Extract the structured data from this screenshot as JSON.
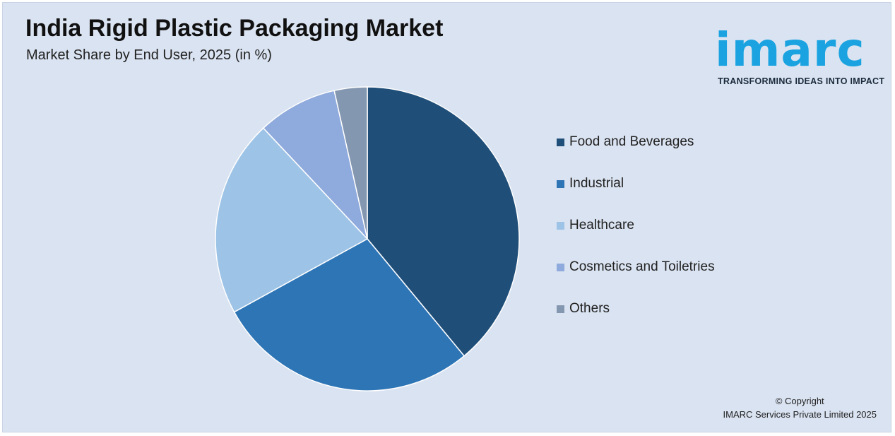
{
  "header": {
    "title": "India Rigid Plastic Packaging Market",
    "subtitle": "Market Share by End User, 2025 (in %)"
  },
  "logo": {
    "wordmark": "imarc",
    "tagline": "TRANSFORMING IDEAS INTO IMPACT",
    "color": "#1aa3e0"
  },
  "chart_data": {
    "type": "pie",
    "title": "India Rigid Plastic Packaging Market",
    "subtitle": "Market Share by End User, 2025 (in %)",
    "categories": [
      "Food and Beverages",
      "Industrial",
      "Healthcare",
      "Cosmetics and Toiletries",
      "Others"
    ],
    "values": [
      39,
      28,
      21,
      8.5,
      3.5
    ],
    "colors": [
      "#1f4e79",
      "#2e75b6",
      "#9dc3e6",
      "#8faadc",
      "#8497b0"
    ],
    "legend_position": "right",
    "start_angle": "12 o'clock, clockwise"
  },
  "footer": {
    "copyright_line1": "© Copyright",
    "copyright_line2": "IMARC Services Private Limited 2025"
  }
}
